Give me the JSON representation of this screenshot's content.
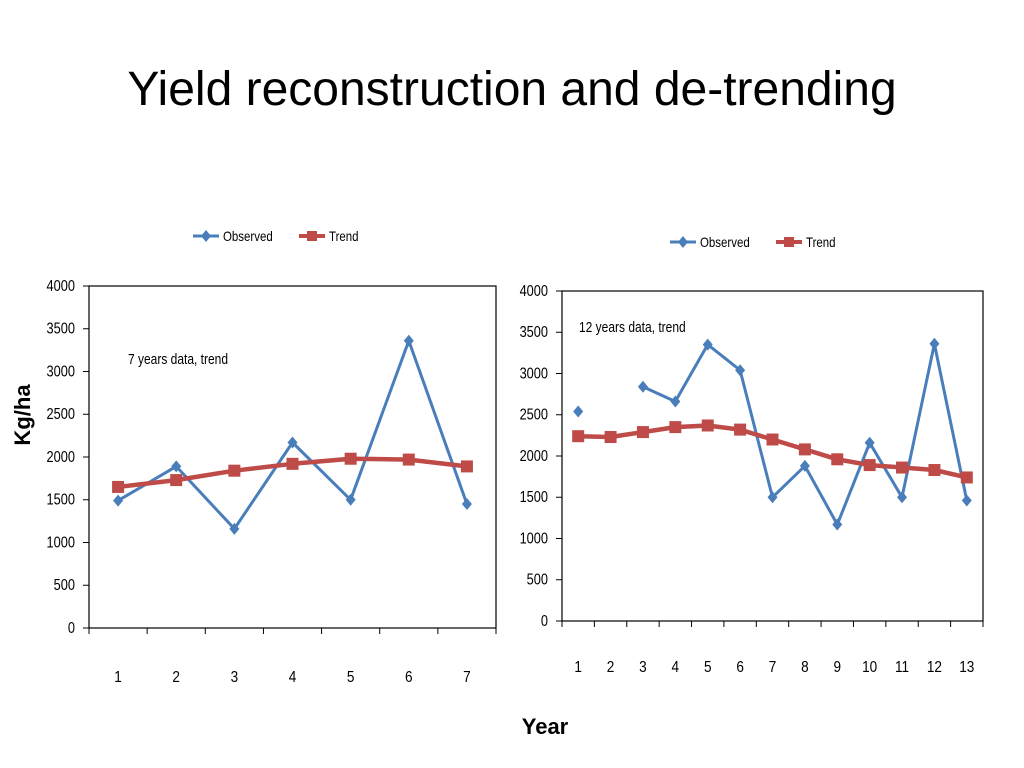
{
  "slide": {
    "title": "Yield reconstruction and de-trending",
    "shared_ylabel": "Kg/ha",
    "shared_xlabel": "Year"
  },
  "colors": {
    "observed": "#4a7ebb",
    "trend": "#be4b48"
  },
  "chart_data": [
    {
      "type": "line",
      "annotation": "7 years data, trend",
      "x": [
        "1",
        "2",
        "3",
        "4",
        "5",
        "6",
        "7"
      ],
      "ylim": [
        0,
        4000
      ],
      "yticks": [
        0,
        500,
        1000,
        1500,
        2000,
        2500,
        3000,
        3500,
        4000
      ],
      "ylabel": "Kg/ha",
      "xlabel": "Year",
      "legend_position": "top-center",
      "grid": false,
      "series": [
        {
          "name": "Observed",
          "marker": "diamond",
          "values": [
            1490,
            1890,
            1160,
            2170,
            1500,
            3360,
            1450
          ]
        },
        {
          "name": "Trend",
          "marker": "square",
          "values": [
            1650,
            1730,
            1840,
            1920,
            1980,
            1970,
            1890
          ]
        }
      ]
    },
    {
      "type": "line",
      "annotation": "12 years data, trend",
      "x": [
        "1",
        "2",
        "3",
        "4",
        "5",
        "6",
        "7",
        "8",
        "9",
        "10",
        "11",
        "12",
        "13"
      ],
      "ylim": [
        0,
        4000
      ],
      "yticks": [
        0,
        500,
        1000,
        1500,
        2000,
        2500,
        3000,
        3500,
        4000
      ],
      "ylabel": "Kg/ha",
      "xlabel": "Year",
      "legend_position": "top-center",
      "grid": false,
      "series": [
        {
          "name": "Observed",
          "marker": "diamond",
          "values": [
            2540,
            null,
            2840,
            2660,
            3350,
            3040,
            1500,
            1880,
            1170,
            2160,
            1500,
            3360,
            1460
          ]
        },
        {
          "name": "Trend",
          "marker": "square",
          "values": [
            2240,
            2230,
            2290,
            2350,
            2370,
            2320,
            2200,
            2080,
            1960,
            1890,
            1860,
            1830,
            1740
          ]
        }
      ]
    }
  ]
}
